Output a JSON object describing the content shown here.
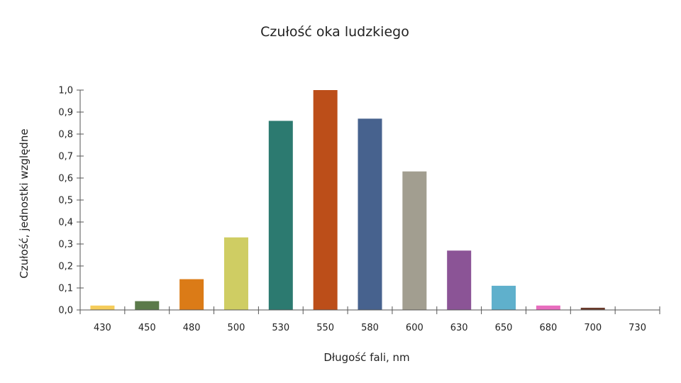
{
  "chart_data": {
    "type": "bar",
    "title": "Czułość oka ludzkiego",
    "xlabel": "Długość fali, nm",
    "ylabel": "Czułość, jednostki względne",
    "categories": [
      "430",
      "450",
      "480",
      "500",
      "530",
      "550",
      "580",
      "600",
      "630",
      "650",
      "680",
      "700",
      "730"
    ],
    "values": [
      0.02,
      0.04,
      0.14,
      0.33,
      0.86,
      1.0,
      0.87,
      0.63,
      0.27,
      0.11,
      0.02,
      0.01,
      0.0
    ],
    "colors": [
      "#f5cc5a",
      "#5b7a4a",
      "#db7b17",
      "#cfcd63",
      "#2c7a70",
      "#bc4e19",
      "#47628e",
      "#a29e90",
      "#8b5496",
      "#5fb0cc",
      "#e86dbe",
      "#6b3b2c",
      "#555555"
    ],
    "ylim": [
      0,
      1.0
    ],
    "yticks": [
      "0,0",
      "0,1",
      "0,2",
      "0,3",
      "0,4",
      "0,5",
      "0,6",
      "0,7",
      "0,8",
      "0,9",
      "1,0"
    ],
    "grid": false,
    "legend": "none"
  }
}
